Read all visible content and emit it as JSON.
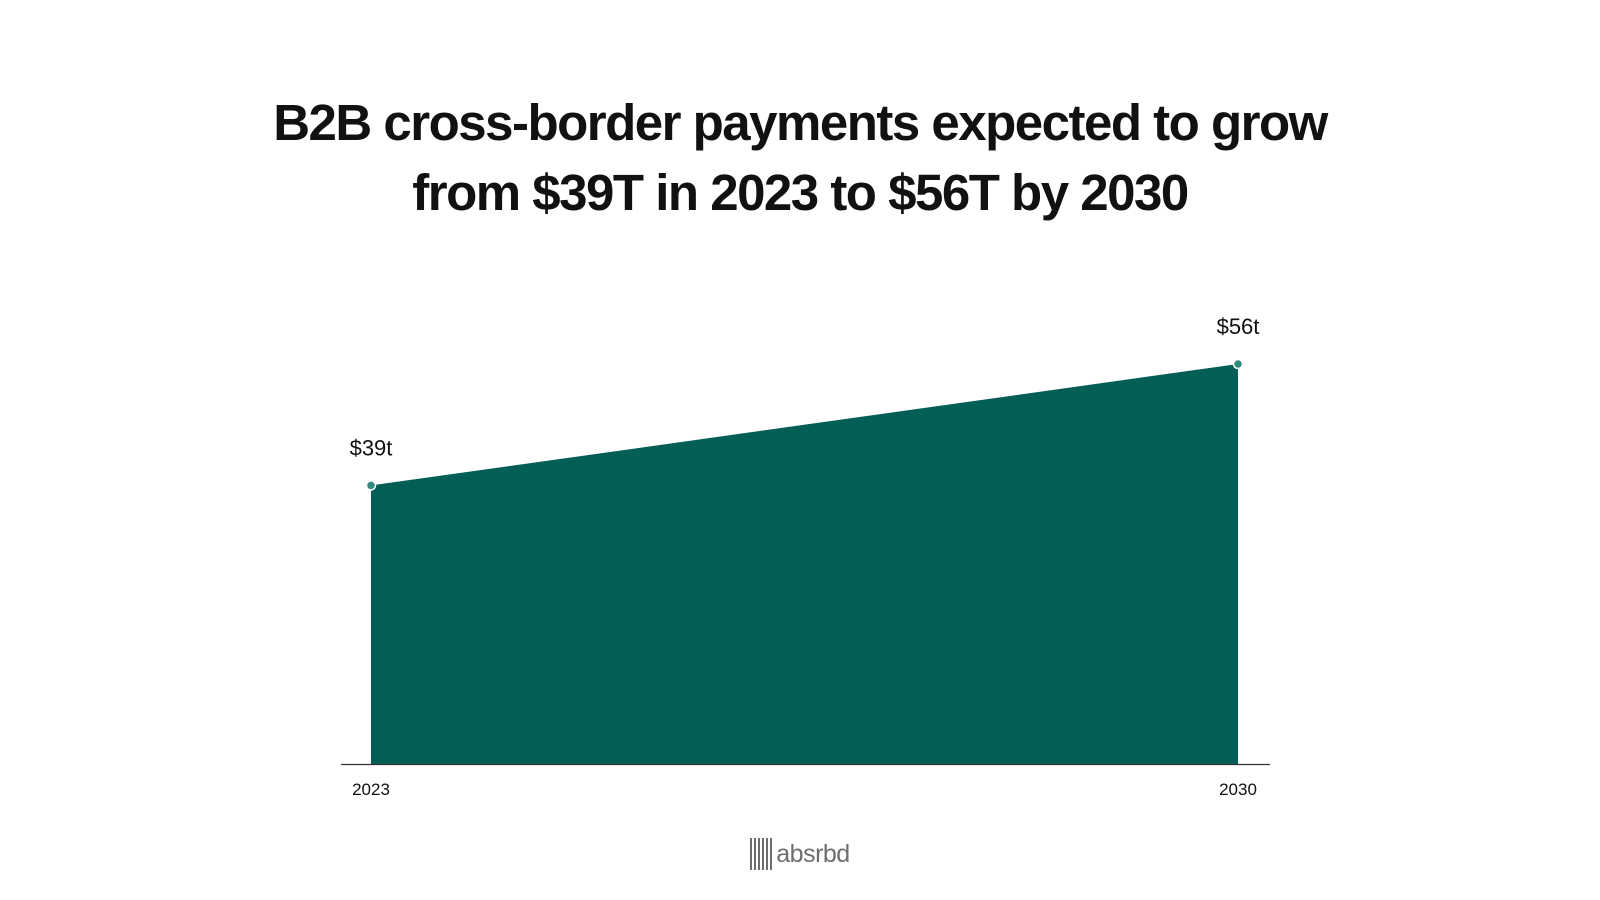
{
  "chart_data": {
    "type": "area",
    "title": [
      "B2B cross-border payments expected to grow",
      "from $39T in 2023 to $56T by 2030"
    ],
    "x": [
      "2023",
      "2030"
    ],
    "series": [
      {
        "values": [
          39,
          56
        ],
        "labels": [
          "$39t",
          "$56t"
        ]
      }
    ],
    "ylim": [
      0,
      60
    ],
    "grid": false,
    "color": "#035f55",
    "marker_color": "#2f8a7f"
  },
  "logo": {
    "text": "absrbd",
    "color": "#6e6e6e"
  }
}
